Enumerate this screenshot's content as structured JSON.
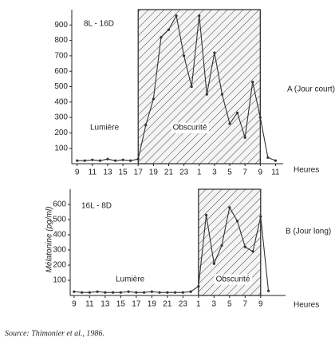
{
  "chart_data": [
    {
      "type": "line",
      "period_label": "8L - 16D",
      "light_label": "Lumière",
      "dark_label": "Obscurité",
      "panel_label": "A (Jour court)",
      "xlabel": "Heures",
      "dark_period": [
        17,
        33
      ],
      "color": "#333333",
      "xlim": [
        8.3,
        36
      ],
      "ylim": [
        0,
        1000
      ],
      "xticks": [
        9,
        11,
        13,
        15,
        17,
        19,
        21,
        23,
        {
          "value": 25,
          "label": "1"
        },
        {
          "value": 27,
          "label": "3"
        },
        {
          "value": 29,
          "label": "5"
        },
        {
          "value": 31,
          "label": "7"
        },
        {
          "value": 33,
          "label": "9"
        },
        {
          "value": 35,
          "label": "11"
        }
      ],
      "yticks": [
        100,
        200,
        300,
        400,
        500,
        600,
        700,
        800,
        900
      ],
      "x": [
        9,
        10,
        11,
        12,
        13,
        14,
        15,
        16,
        17,
        18,
        19,
        20,
        21,
        22,
        23,
        24,
        25,
        26,
        27,
        28,
        29,
        30,
        31,
        32,
        33,
        34,
        35
      ],
      "values": [
        20,
        20,
        25,
        20,
        30,
        20,
        25,
        20,
        30,
        250,
        420,
        820,
        870,
        960,
        700,
        500,
        960,
        450,
        720,
        450,
        260,
        330,
        170,
        530,
        300,
        40,
        20
      ]
    },
    {
      "type": "line",
      "period_label": "16L - 8D",
      "light_label": "Lumière",
      "dark_label": "Obscurité",
      "panel_label": "B (Jour long)",
      "xlabel": "Heures",
      "ylabel": "Mélatonine (pg/ml)",
      "dark_period": [
        25,
        33
      ],
      "color": "#333333",
      "xlim": [
        8.5,
        36.2
      ],
      "ylim": [
        0,
        700
      ],
      "xticks": [
        9,
        11,
        13,
        15,
        17,
        19,
        21,
        23,
        {
          "value": 25,
          "label": "1"
        },
        {
          "value": 27,
          "label": "3"
        },
        {
          "value": 29,
          "label": "5"
        },
        {
          "value": 31,
          "label": "7"
        },
        {
          "value": 33,
          "label": "9"
        }
      ],
      "yticks": [
        100,
        200,
        300,
        400,
        500,
        600
      ],
      "x": [
        9,
        10,
        11,
        12,
        13,
        14,
        15,
        16,
        17,
        18,
        19,
        20,
        21,
        22,
        23,
        24,
        25,
        26,
        27,
        28,
        29,
        30,
        31,
        32,
        33,
        34
      ],
      "values": [
        25,
        20,
        20,
        25,
        20,
        20,
        20,
        25,
        20,
        20,
        25,
        20,
        20,
        20,
        20,
        25,
        60,
        530,
        210,
        330,
        580,
        490,
        320,
        290,
        520,
        30
      ]
    }
  ],
  "source": "Source: Thimonier et al., 1986."
}
